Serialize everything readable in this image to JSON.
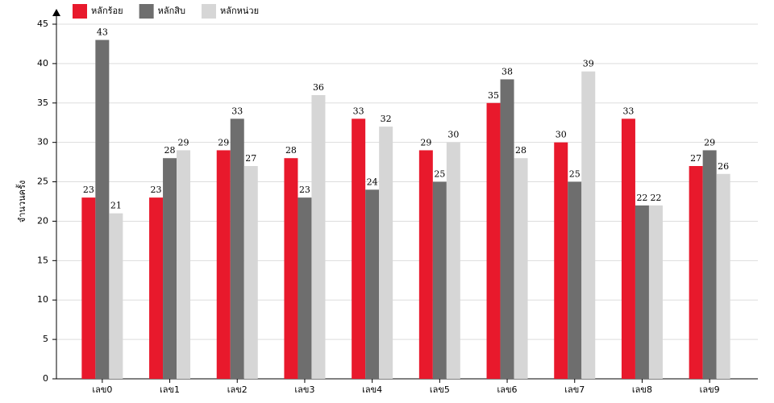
{
  "chart_data": {
    "type": "bar",
    "y_label": "จำนวนครั้ง",
    "categories": [
      "เลข0",
      "เลข1",
      "เลข2",
      "เลข3",
      "เลข4",
      "เลข5",
      "เลข6",
      "เลข7",
      "เลข8",
      "เลข9"
    ],
    "series": [
      {
        "name": "หลักร้อย",
        "color": "#e8192c",
        "values": [
          23,
          23,
          29,
          28,
          33,
          29,
          35,
          30,
          33,
          27
        ]
      },
      {
        "name": "หลักสิบ",
        "color": "#6e6e6e",
        "values": [
          43,
          28,
          33,
          23,
          24,
          25,
          38,
          25,
          22,
          29
        ]
      },
      {
        "name": "หลักหน่วย",
        "color": "#d6d6d6",
        "values": [
          21,
          29,
          27,
          36,
          32,
          30,
          28,
          39,
          22,
          26
        ]
      }
    ],
    "ylim": [
      0,
      45
    ],
    "yticks": [
      0,
      5,
      10,
      15,
      20,
      25,
      30,
      35,
      40,
      45
    ],
    "grid": true
  }
}
